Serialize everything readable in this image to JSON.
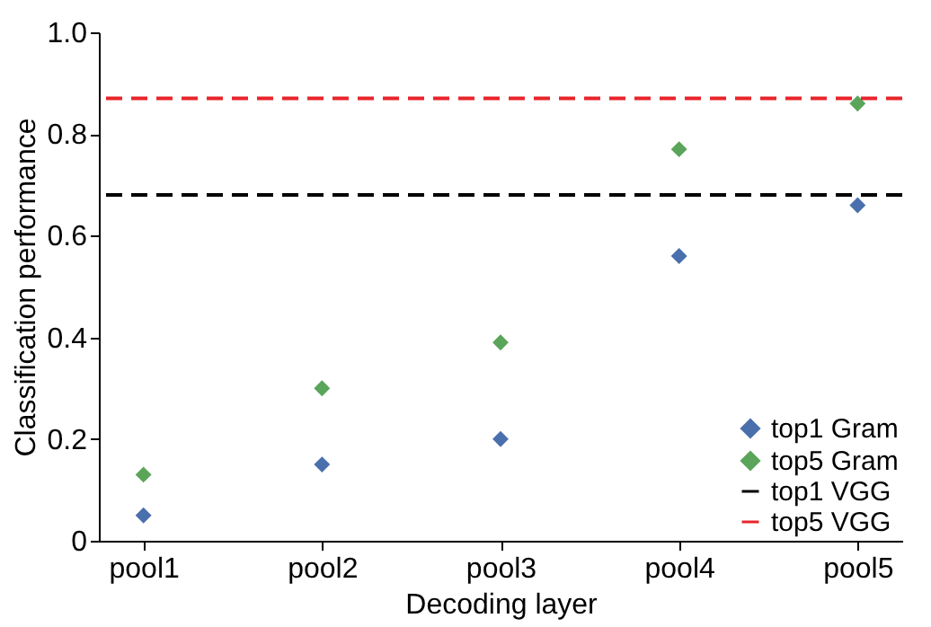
{
  "chart_data": {
    "type": "scatter",
    "xlabel": "Decoding layer",
    "ylabel": "Classification performance",
    "categories": [
      "pool1",
      "pool2",
      "pool3",
      "pool4",
      "pool5"
    ],
    "series": [
      {
        "name": "top1 Gram",
        "color": "#4a6fad",
        "values": [
          0.05,
          0.15,
          0.2,
          0.56,
          0.66
        ]
      },
      {
        "name": "top5 Gram",
        "color": "#5aa55a",
        "values": [
          0.13,
          0.3,
          0.39,
          0.77,
          0.86
        ]
      }
    ],
    "ref_lines": [
      {
        "axis": "y",
        "value": 0.68,
        "label": "top1 VGG",
        "color": "#000000",
        "line_style": "dashed"
      },
      {
        "axis": "y",
        "value": 0.87,
        "label": "top5 VGG",
        "color": "#e8242a",
        "line_style": "dashed"
      }
    ],
    "marker": "diamond",
    "ylim": [
      0,
      1
    ],
    "yticks": [
      {
        "value": 0,
        "label": "0"
      },
      0.2,
      0.4,
      0.6,
      0.8,
      {
        "value": 1,
        "label": "1.0"
      }
    ],
    "grid": false,
    "legend": "bottom right"
  }
}
